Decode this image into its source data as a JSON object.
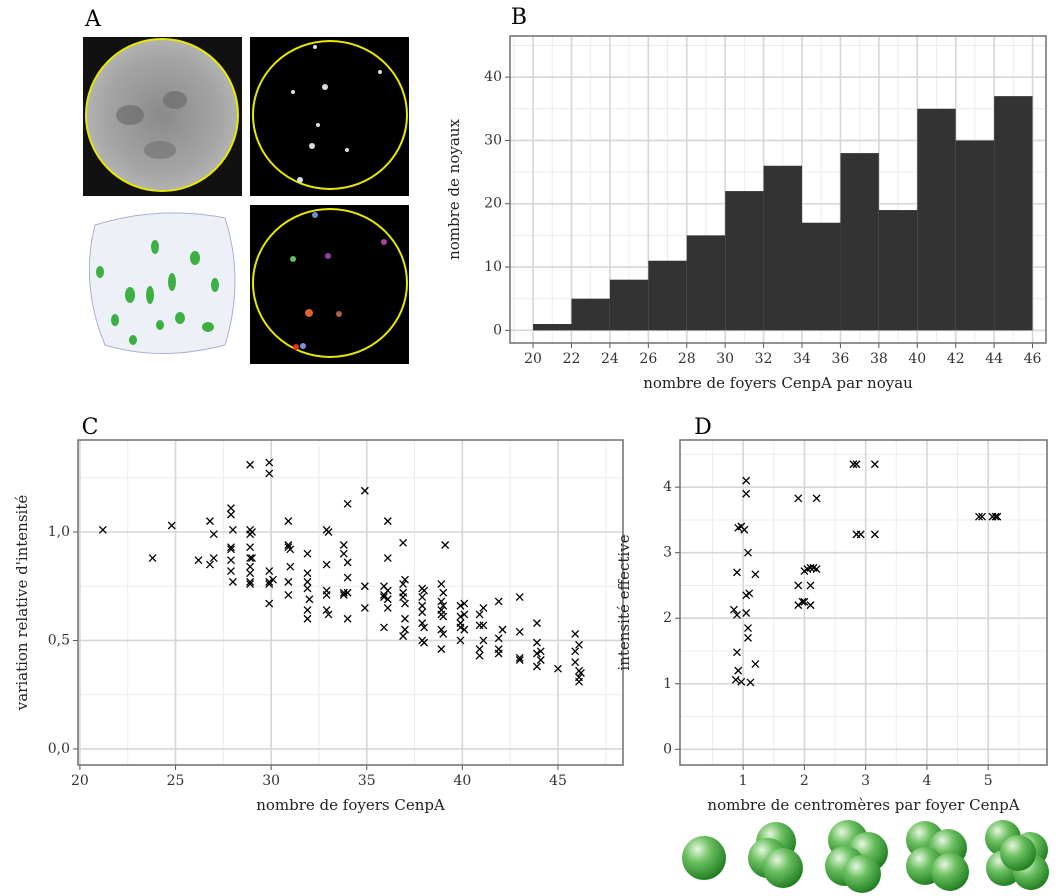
{
  "panel_a": {
    "label": "A"
  },
  "chart_data": [
    {
      "type": "histogram",
      "label": "B",
      "x_label": "nombre de foyers CenpA par noyau",
      "y_label": "nombre de noyaux",
      "bins": [
        20,
        22,
        24,
        26,
        28,
        30,
        32,
        34,
        36,
        38,
        40,
        42,
        44,
        46
      ],
      "values": [
        1,
        5,
        8,
        11,
        15,
        22,
        26,
        17,
        28,
        19,
        35,
        30,
        37
      ],
      "color": "#333333",
      "xlim": [
        18.8,
        46.7
      ],
      "ylim": [
        -2,
        46.5
      ],
      "xticks": [
        20,
        22,
        24,
        26,
        28,
        30,
        32,
        34,
        36,
        38,
        40,
        42,
        44,
        46
      ],
      "yticks": [
        0,
        10,
        20,
        30,
        40
      ],
      "grid": true
    },
    {
      "type": "scatter",
      "label": "C",
      "x_label": "nombre de foyers CenpA",
      "y_label": "variation relative d'intensité",
      "x": [
        21.2,
        23.8,
        24.8,
        26.2,
        26.8,
        26.8,
        27,
        27,
        27.9,
        27.9,
        27.9,
        27.9,
        27.9,
        27.9,
        28,
        28,
        28.9,
        28.9,
        28.9,
        28.9,
        28.9,
        28.9,
        28.9,
        28.9,
        28.9,
        29,
        29,
        29.9,
        29.9,
        29.9,
        29.9,
        29.9,
        29.9,
        30.1,
        30.9,
        30.9,
        30.9,
        30.9,
        30.9,
        31,
        31,
        31.9,
        31.9,
        31.9,
        31.9,
        31.9,
        31.9,
        32,
        32.9,
        32.9,
        32.9,
        32.9,
        32.9,
        33,
        33,
        33.8,
        33.8,
        33.8,
        33.8,
        34,
        34,
        34,
        34,
        34,
        34.9,
        34.9,
        34.9,
        35.9,
        35.9,
        35.9,
        35.9,
        36.1,
        36.1,
        36.1,
        36.1,
        36.1,
        36.9,
        36.9,
        36.9,
        36.9,
        36.9,
        37,
        37,
        37,
        37,
        37.9,
        37.9,
        37.9,
        37.9,
        37.9,
        37.9,
        38,
        38,
        38,
        38.9,
        38.9,
        38.9,
        38.9,
        38.9,
        38.9,
        39,
        39,
        39,
        39,
        39.1,
        39.9,
        39.9,
        39.9,
        39.9,
        39.9,
        40.1,
        40.1,
        40.1,
        40.9,
        40.9,
        40.9,
        40.9,
        41.1,
        41.1,
        41.1,
        41.9,
        41.9,
        41.9,
        41.9,
        42.1,
        43,
        43,
        43,
        43,
        43.9,
        43.9,
        43.9,
        43.9,
        44.1,
        44.1,
        45,
        45.9,
        45.9,
        45.9,
        46.1,
        46.1,
        46.1,
        46.1,
        46.2
      ],
      "values": [
        1.01,
        0.88,
        1.03,
        0.87,
        1.05,
        0.85,
        0.99,
        0.88,
        1.08,
        1.11,
        0.93,
        0.92,
        0.87,
        0.82,
        1.01,
        0.77,
        1.31,
        1.01,
        0.99,
        0.93,
        0.88,
        0.84,
        0.81,
        0.77,
        0.76,
        1.0,
        0.88,
        1.32,
        1.27,
        0.82,
        0.77,
        0.76,
        0.67,
        0.78,
        1.05,
        0.94,
        0.93,
        0.77,
        0.71,
        0.92,
        0.84,
        0.9,
        0.81,
        0.77,
        0.74,
        0.64,
        0.6,
        0.69,
        1.01,
        0.85,
        0.73,
        0.71,
        0.64,
        1.0,
        0.62,
        0.94,
        0.9,
        0.72,
        0.71,
        1.13,
        0.86,
        0.79,
        0.72,
        0.6,
        1.19,
        0.75,
        0.65,
        0.75,
        0.71,
        0.7,
        0.56,
        1.05,
        0.88,
        0.73,
        0.69,
        0.65,
        0.95,
        0.76,
        0.72,
        0.7,
        0.52,
        0.78,
        0.67,
        0.6,
        0.55,
        0.74,
        0.7,
        0.66,
        0.63,
        0.58,
        0.5,
        0.73,
        0.56,
        0.49,
        0.76,
        0.68,
        0.64,
        0.62,
        0.55,
        0.46,
        0.72,
        0.66,
        0.61,
        0.53,
        0.94,
        0.66,
        0.61,
        0.58,
        0.56,
        0.5,
        0.67,
        0.62,
        0.55,
        0.62,
        0.57,
        0.43,
        0.46,
        0.65,
        0.57,
        0.5,
        0.68,
        0.51,
        0.46,
        0.44,
        0.55,
        0.7,
        0.54,
        0.42,
        0.41,
        0.58,
        0.49,
        0.44,
        0.38,
        0.45,
        0.41,
        0.37,
        0.53,
        0.45,
        0.4,
        0.48,
        0.36,
        0.33,
        0.31,
        0.35
      ],
      "color": "#000000",
      "xlim": [
        19.9,
        48.4
      ],
      "ylim": [
        -0.074,
        1.424
      ],
      "xticks": [
        20,
        25,
        30,
        35,
        40,
        45
      ],
      "yticks": [
        {
          "value": 0,
          "label": "0,0"
        },
        {
          "value": 0.5,
          "label": "0,5"
        },
        {
          "value": 1,
          "label": "1,0"
        }
      ],
      "grid": true
    },
    {
      "type": "scatter",
      "label": "D",
      "x_label": "nombre de centromères par foyer CenpA",
      "y_label": "intensité effective",
      "x": [
        0.85,
        0.9,
        0.9,
        0.92,
        0.88,
        0.97,
        0.9,
        0.92,
        0.97,
        1.02,
        1.05,
        1.05,
        1.05,
        1.05,
        1.08,
        1.08,
        1.08,
        1.1,
        1.12,
        1.2,
        1.2,
        1.9,
        1.9,
        1.9,
        1.97,
        2.0,
        2.0,
        2.05,
        2.1,
        2.1,
        2.1,
        2.15,
        2.2,
        2.2,
        2.8,
        2.85,
        2.85,
        2.92,
        3.15,
        3.15,
        4.85,
        4.9,
        5.07,
        5.12,
        5.15
      ],
      "values": [
        2.13,
        2.05,
        1.48,
        1.2,
        1.06,
        1.03,
        2.7,
        3.38,
        3.4,
        3.35,
        4.1,
        3.9,
        2.35,
        2.08,
        1.85,
        1.7,
        3.0,
        2.38,
        1.02,
        2.67,
        1.3,
        3.83,
        2.5,
        2.2,
        2.25,
        2.25,
        2.72,
        2.75,
        2.77,
        2.5,
        2.2,
        2.77,
        2.75,
        3.83,
        4.35,
        4.35,
        3.28,
        3.28,
        4.35,
        3.28,
        3.55,
        3.55,
        3.55,
        3.55,
        3.55
      ],
      "color": "#000000",
      "xlim": [
        -0.03,
        5.96
      ],
      "ylim": [
        -0.24,
        4.72
      ],
      "xticks": [
        1,
        2,
        3,
        4,
        5
      ],
      "yticks": [
        0,
        1,
        2,
        3,
        4
      ],
      "grid": true
    }
  ]
}
